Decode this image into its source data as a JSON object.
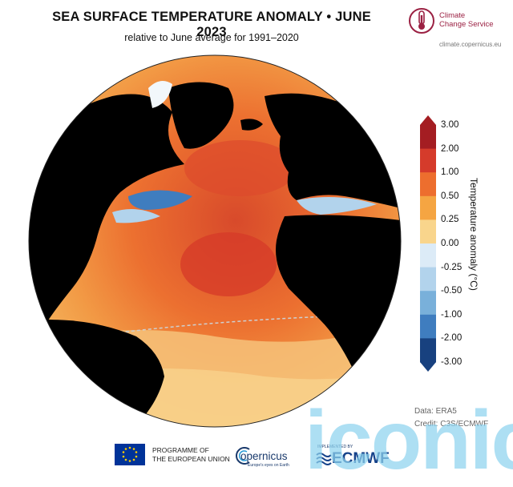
{
  "header": {
    "title": "SEA SURFACE TEMPERATURE ANOMALY • JUNE 2023",
    "subtitle": "relative to June average for 1991–2020"
  },
  "logo": {
    "name_line1": "Climate",
    "name_line2": "Change Service",
    "url": "climate.copernicus.eu",
    "color": "#9b2143",
    "icon": "thermometer-icon"
  },
  "colorbar": {
    "label": "Temperature anomaly (°C)",
    "ticks": [
      "3.00",
      "2.00",
      "1.00",
      "0.50",
      "0.25",
      "0.00",
      "-0.25",
      "-0.50",
      "-1.00",
      "-2.00",
      "-3.00"
    ],
    "colors": [
      "#a41d22",
      "#d53b2b",
      "#ed6e2e",
      "#f5a542",
      "#f9d58c",
      "#fdf6e3",
      "#dcebf7",
      "#b2d3ec",
      "#79b0da",
      "#3f7dbf",
      "#18417f"
    ]
  },
  "credits": {
    "data": "Data: ERA5",
    "credit": "Credit: C3S/ECMWF"
  },
  "footer": {
    "eu_line1": "PROGRAMME OF",
    "eu_line2": "THE EUROPEAN UNION",
    "copernicus": "opernicus",
    "copernicus_sub": "Europe's eyes on Earth",
    "ecmwf_small": "IMPLEMENTED BY",
    "ecmwf": "ECMWF"
  },
  "watermark": "iconic",
  "map": {
    "land_color": "#000000",
    "sea_ice_color": "#f2f7fb",
    "ocean_dominant_color": "#ee7a3a"
  }
}
